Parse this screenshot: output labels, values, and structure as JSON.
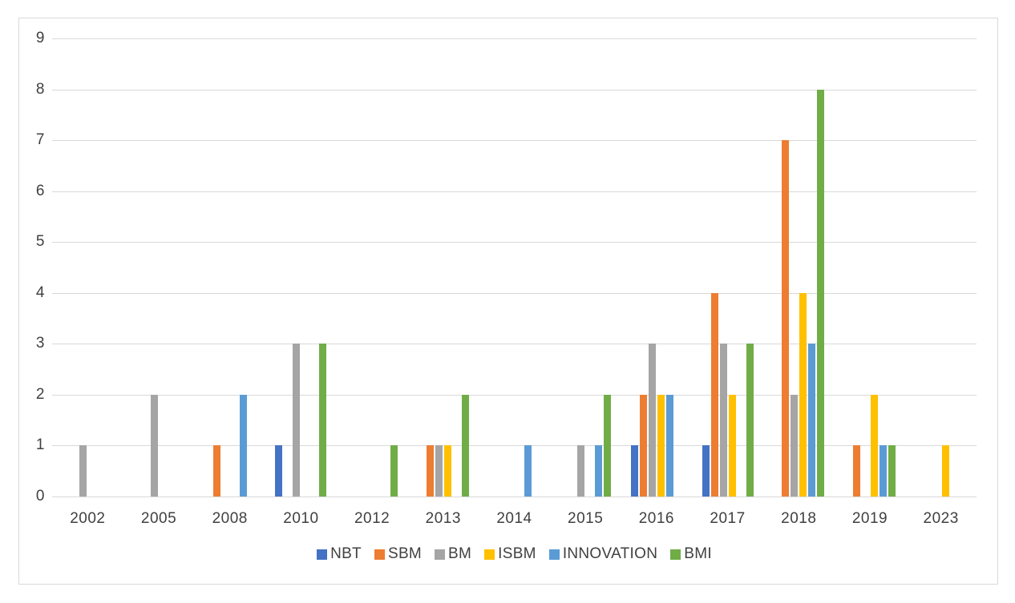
{
  "chart_data": {
    "type": "bar",
    "title": "",
    "xlabel": "",
    "ylabel": "",
    "categories": [
      "2002",
      "2005",
      "2008",
      "2010",
      "2012",
      "2013",
      "2014",
      "2015",
      "2016",
      "2017",
      "2018",
      "2019",
      "2023"
    ],
    "series": [
      {
        "name": "NBT",
        "color": "#4472C4",
        "values": [
          0,
          0,
          0,
          1,
          0,
          0,
          0,
          0,
          1,
          1,
          0,
          0,
          0
        ]
      },
      {
        "name": "SBM",
        "color": "#ED7D31",
        "values": [
          0,
          0,
          1,
          0,
          0,
          1,
          0,
          0,
          2,
          4,
          7,
          1,
          0
        ]
      },
      {
        "name": "BM",
        "color": "#A5A5A5",
        "values": [
          1,
          2,
          0,
          3,
          0,
          1,
          0,
          1,
          3,
          3,
          2,
          0,
          0
        ]
      },
      {
        "name": "ISBM",
        "color": "#FFC000",
        "values": [
          0,
          0,
          0,
          0,
          0,
          1,
          0,
          0,
          2,
          2,
          4,
          2,
          1
        ]
      },
      {
        "name": "INNOVATION",
        "color": "#5B9BD5",
        "values": [
          0,
          0,
          2,
          0,
          0,
          0,
          1,
          1,
          2,
          0,
          3,
          1,
          0
        ]
      },
      {
        "name": "BMI",
        "color": "#70AD47",
        "values": [
          0,
          0,
          0,
          3,
          1,
          2,
          0,
          2,
          0,
          3,
          8,
          1,
          0
        ]
      }
    ],
    "ylim": [
      0,
      9
    ],
    "yticks": [
      0,
      1,
      2,
      3,
      4,
      5,
      6,
      7,
      8,
      9
    ],
    "grid": true,
    "legend_position": "bottom"
  },
  "style": {
    "gridline_color": "#D9D9D9",
    "frame_border_color": "#D9D9D9",
    "axis_text_color": "#404040",
    "background": "#FFFFFF"
  }
}
